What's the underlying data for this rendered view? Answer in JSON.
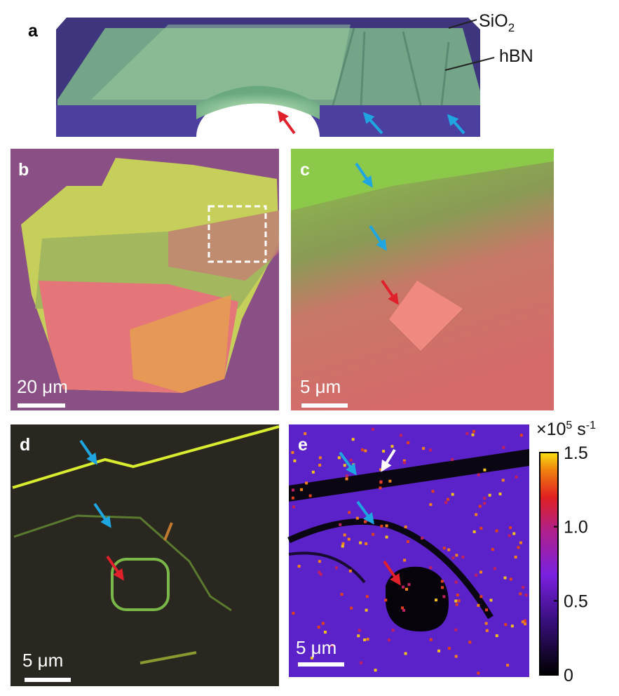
{
  "panels": {
    "a": {
      "label": "a",
      "layer_top": "SiO",
      "layer_top_sub": "2",
      "layer_mid": "hBN"
    },
    "b": {
      "label": "b",
      "scale_bar": "20 μm"
    },
    "c": {
      "label": "c",
      "scale_bar": "5 μm"
    },
    "d": {
      "label": "d",
      "scale_bar": "5 μm"
    },
    "e": {
      "label": "e",
      "scale_bar": "5 μm"
    }
  },
  "colorbar": {
    "unit_base": "×10",
    "unit_exp": "5",
    "unit_suffix": " s",
    "unit_suffix_exp": "-1",
    "lim": [
      0,
      1.5
    ],
    "ticks": [
      {
        "value": 1.5,
        "label": "1.5"
      },
      {
        "value": 1.0,
        "label": "1.0"
      },
      {
        "value": 0.5,
        "label": "0.5"
      },
      0
    ]
  }
}
